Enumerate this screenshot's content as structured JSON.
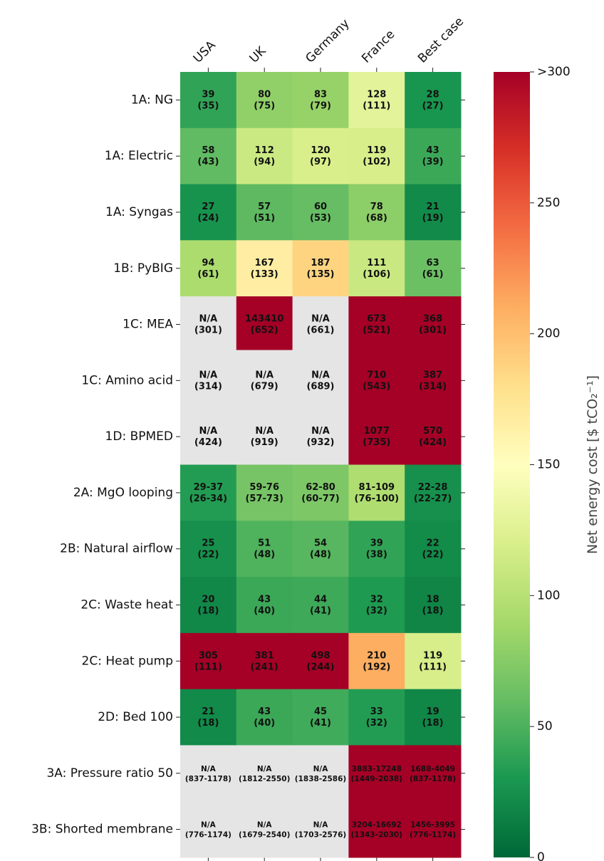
{
  "chart_data": {
    "type": "heatmap",
    "columns": [
      "USA",
      "UK",
      "Germany",
      "France",
      "Best case"
    ],
    "rows": [
      "1A: NG",
      "1A: Electric",
      "1A: Syngas",
      "1B: PyBIG",
      "1C: MEA",
      "1C: Amino acid",
      "1D: BPMED",
      "2A: MgO looping",
      "2B: Natural airflow",
      "2C: Waste heat",
      "2C: Heat pump",
      "2D: Bed 100",
      "3A: Pressure ratio 50",
      "3B: Shorted membrane"
    ],
    "cells": [
      [
        {
          "value": 39,
          "main": "39",
          "sub": "(35)"
        },
        {
          "value": 80,
          "main": "80",
          "sub": "(75)"
        },
        {
          "value": 83,
          "main": "83",
          "sub": "(79)"
        },
        {
          "value": 128,
          "main": "128",
          "sub": "(111)"
        },
        {
          "value": 28,
          "main": "28",
          "sub": "(27)"
        }
      ],
      [
        {
          "value": 58,
          "main": "58",
          "sub": "(43)"
        },
        {
          "value": 112,
          "main": "112",
          "sub": "(94)"
        },
        {
          "value": 120,
          "main": "120",
          "sub": "(97)"
        },
        {
          "value": 119,
          "main": "119",
          "sub": "(102)"
        },
        {
          "value": 43,
          "main": "43",
          "sub": "(39)"
        }
      ],
      [
        {
          "value": 27,
          "main": "27",
          "sub": "(24)"
        },
        {
          "value": 57,
          "main": "57",
          "sub": "(51)"
        },
        {
          "value": 60,
          "main": "60",
          "sub": "(53)"
        },
        {
          "value": 78,
          "main": "78",
          "sub": "(68)"
        },
        {
          "value": 21,
          "main": "21",
          "sub": "(19)"
        }
      ],
      [
        {
          "value": 94,
          "main": "94",
          "sub": "(61)"
        },
        {
          "value": 167,
          "main": "167",
          "sub": "(133)"
        },
        {
          "value": 187,
          "main": "187",
          "sub": "(135)"
        },
        {
          "value": 111,
          "main": "111",
          "sub": "(106)"
        },
        {
          "value": 63,
          "main": "63",
          "sub": "(61)"
        }
      ],
      [
        {
          "value": null,
          "main": "N/A",
          "sub": "(301)"
        },
        {
          "value": 143410,
          "main": "143410",
          "sub": "(652)",
          "partial": true
        },
        {
          "value": null,
          "main": "N/A",
          "sub": "(661)"
        },
        {
          "value": 673,
          "main": "673",
          "sub": "(521)"
        },
        {
          "value": 368,
          "main": "368",
          "sub": "(301)"
        }
      ],
      [
        {
          "value": null,
          "main": "N/A",
          "sub": "(314)"
        },
        {
          "value": null,
          "main": "N/A",
          "sub": "(679)"
        },
        {
          "value": null,
          "main": "N/A",
          "sub": "(689)"
        },
        {
          "value": 710,
          "main": "710",
          "sub": "(543)"
        },
        {
          "value": 387,
          "main": "387",
          "sub": "(314)"
        }
      ],
      [
        {
          "value": null,
          "main": "N/A",
          "sub": "(424)"
        },
        {
          "value": null,
          "main": "N/A",
          "sub": "(919)"
        },
        {
          "value": null,
          "main": "N/A",
          "sub": "(932)"
        },
        {
          "value": 1077,
          "main": "1077",
          "sub": "(735)"
        },
        {
          "value": 570,
          "main": "570",
          "sub": "(424)"
        }
      ],
      [
        {
          "value": 33,
          "main": "29-37",
          "sub": "(26-34)"
        },
        {
          "value": 67.5,
          "main": "59-76",
          "sub": "(57-73)"
        },
        {
          "value": 71,
          "main": "62-80",
          "sub": "(60-77)"
        },
        {
          "value": 95,
          "main": "81-109",
          "sub": "(76-100)"
        },
        {
          "value": 25,
          "main": "22-28",
          "sub": "(22-27)"
        }
      ],
      [
        {
          "value": 25,
          "main": "25",
          "sub": "(22)"
        },
        {
          "value": 51,
          "main": "51",
          "sub": "(48)"
        },
        {
          "value": 54,
          "main": "54",
          "sub": "(48)"
        },
        {
          "value": 39,
          "main": "39",
          "sub": "(38)"
        },
        {
          "value": 22,
          "main": "22",
          "sub": "(22)"
        }
      ],
      [
        {
          "value": 20,
          "main": "20",
          "sub": "(18)"
        },
        {
          "value": 43,
          "main": "43",
          "sub": "(40)"
        },
        {
          "value": 44,
          "main": "44",
          "sub": "(41)"
        },
        {
          "value": 32,
          "main": "32",
          "sub": "(32)"
        },
        {
          "value": 18,
          "main": "18",
          "sub": "(18)"
        }
      ],
      [
        {
          "value": 305,
          "main": "305",
          "sub": "(111)"
        },
        {
          "value": 381,
          "main": "381",
          "sub": "(241)"
        },
        {
          "value": 498,
          "main": "498",
          "sub": "(244)"
        },
        {
          "value": 210,
          "main": "210",
          "sub": "(192)"
        },
        {
          "value": 119,
          "main": "119",
          "sub": "(111)"
        }
      ],
      [
        {
          "value": 21,
          "main": "21",
          "sub": "(18)"
        },
        {
          "value": 43,
          "main": "43",
          "sub": "(40)"
        },
        {
          "value": 45,
          "main": "45",
          "sub": "(41)"
        },
        {
          "value": 33,
          "main": "33",
          "sub": "(32)"
        },
        {
          "value": 19,
          "main": "19",
          "sub": "(18)"
        }
      ],
      [
        {
          "value": null,
          "main": "N/A",
          "sub": "(837-1178)",
          "small": true
        },
        {
          "value": null,
          "main": "N/A",
          "sub": "(1812-2550)",
          "small": true
        },
        {
          "value": null,
          "main": "N/A",
          "sub": "(1838-2586)",
          "small": true
        },
        {
          "value": 10565,
          "main": "3883-17248",
          "sub": "(1449-2038)",
          "small": true
        },
        {
          "value": 2868,
          "main": "1688-4049",
          "sub": "(837-1178)",
          "small": true
        }
      ],
      [
        {
          "value": null,
          "main": "N/A",
          "sub": "(776-1174)",
          "small": true
        },
        {
          "value": null,
          "main": "N/A",
          "sub": "(1679-2540)",
          "small": true
        },
        {
          "value": null,
          "main": "N/A",
          "sub": "(1703-2576)",
          "small": true
        },
        {
          "value": 9948,
          "main": "3204-16692",
          "sub": "(1343-2030)",
          "small": true
        },
        {
          "value": 2725,
          "main": "1456-3995",
          "sub": "(776-1174)",
          "small": true
        }
      ]
    ],
    "na_color": "#e5e5e5",
    "colormap": "RdYlGn_r",
    "colorbar": {
      "range": [
        0,
        300
      ],
      "ticks": [
        "0",
        "50",
        "100",
        "150",
        "200",
        "250",
        ">300"
      ],
      "label": "Net energy cost [$ tCO₂⁻¹]"
    }
  }
}
